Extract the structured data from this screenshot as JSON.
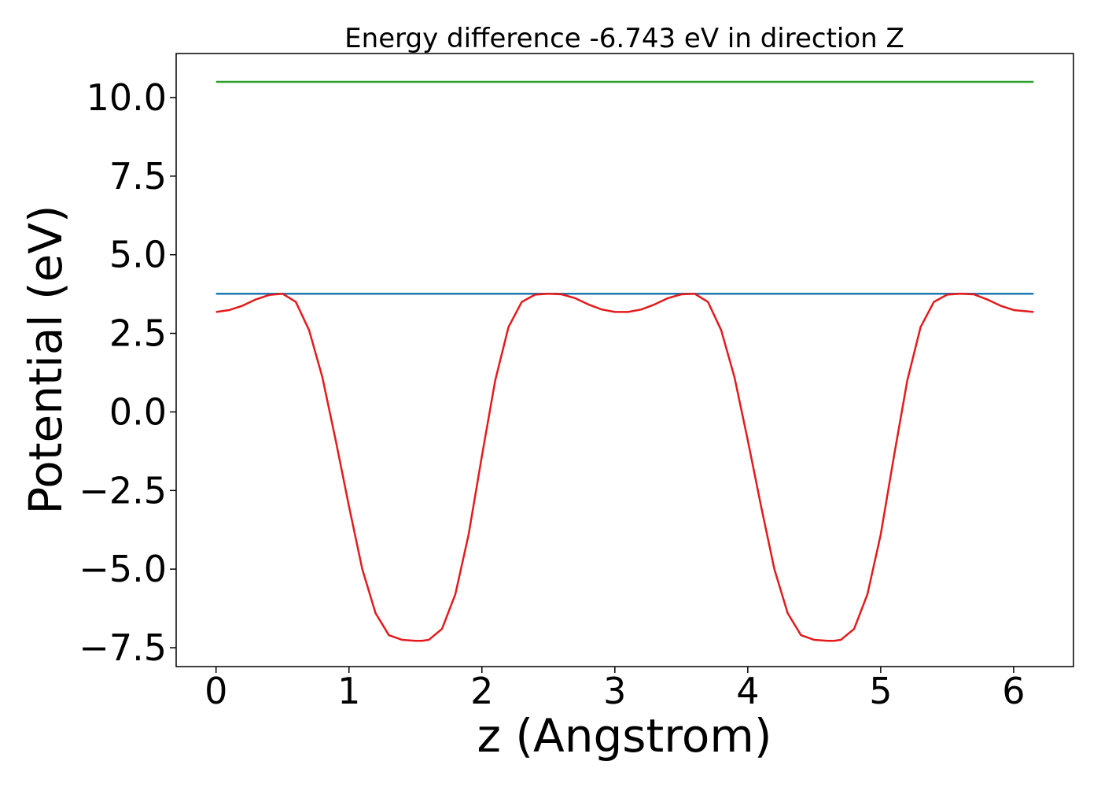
{
  "chart_data": {
    "type": "line",
    "title": "Energy difference -6.743 eV in direction Z",
    "xlabel": "z (Angstrom)",
    "ylabel": "Potential (eV)",
    "xlim": [
      -0.3,
      6.45
    ],
    "ylim": [
      -8.1,
      11.4
    ],
    "xticks": [
      0,
      1,
      2,
      3,
      4,
      5,
      6
    ],
    "xtick_labels": [
      "0",
      "1",
      "2",
      "3",
      "4",
      "5",
      "6"
    ],
    "yticks": [
      10.0,
      7.5,
      5.0,
      2.5,
      0.0,
      -2.5,
      -5.0,
      -7.5
    ],
    "ytick_labels": [
      "10.0",
      "7.5",
      "5.0",
      "2.5",
      "0.0",
      "−2.5",
      "−5.0",
      "−7.5"
    ],
    "grid": false,
    "series": [
      {
        "color": "#2ca02c",
        "x": [
          0.0,
          6.15
        ],
        "y": [
          10.5,
          10.5
        ]
      },
      {
        "color": "#1f77b4",
        "x": [
          0.0,
          6.15
        ],
        "y": [
          3.76,
          3.76
        ]
      },
      {
        "color": "#e41a1c",
        "x": [
          0.0,
          0.1,
          0.2,
          0.3,
          0.4,
          0.5,
          0.6,
          0.7,
          0.8,
          0.9,
          1.0,
          1.1,
          1.2,
          1.3,
          1.4,
          1.5,
          1.55,
          1.6,
          1.7,
          1.8,
          1.9,
          2.0,
          2.1,
          2.2,
          2.3,
          2.4,
          2.5,
          2.6,
          2.7,
          2.8,
          2.9,
          3.0,
          3.1,
          3.2,
          3.3,
          3.4,
          3.5,
          3.6,
          3.7,
          3.8,
          3.9,
          4.0,
          4.1,
          4.2,
          4.3,
          4.4,
          4.5,
          4.6,
          4.65,
          4.7,
          4.8,
          4.9,
          5.0,
          5.1,
          5.2,
          5.3,
          5.4,
          5.5,
          5.6,
          5.7,
          5.8,
          5.9,
          6.0,
          6.15
        ],
        "y": [
          3.18,
          3.24,
          3.38,
          3.58,
          3.72,
          3.76,
          3.5,
          2.6,
          1.1,
          -0.9,
          -3.0,
          -5.0,
          -6.4,
          -7.1,
          -7.25,
          -7.28,
          -7.28,
          -7.25,
          -6.9,
          -5.8,
          -3.9,
          -1.4,
          1.0,
          2.7,
          3.5,
          3.73,
          3.76,
          3.74,
          3.62,
          3.42,
          3.26,
          3.18,
          3.18,
          3.26,
          3.42,
          3.62,
          3.74,
          3.76,
          3.5,
          2.6,
          1.1,
          -0.9,
          -3.0,
          -5.0,
          -6.4,
          -7.1,
          -7.25,
          -7.28,
          -7.28,
          -7.25,
          -6.9,
          -5.8,
          -3.9,
          -1.4,
          1.0,
          2.7,
          3.5,
          3.73,
          3.76,
          3.74,
          3.58,
          3.38,
          3.24,
          3.18
        ]
      }
    ]
  }
}
